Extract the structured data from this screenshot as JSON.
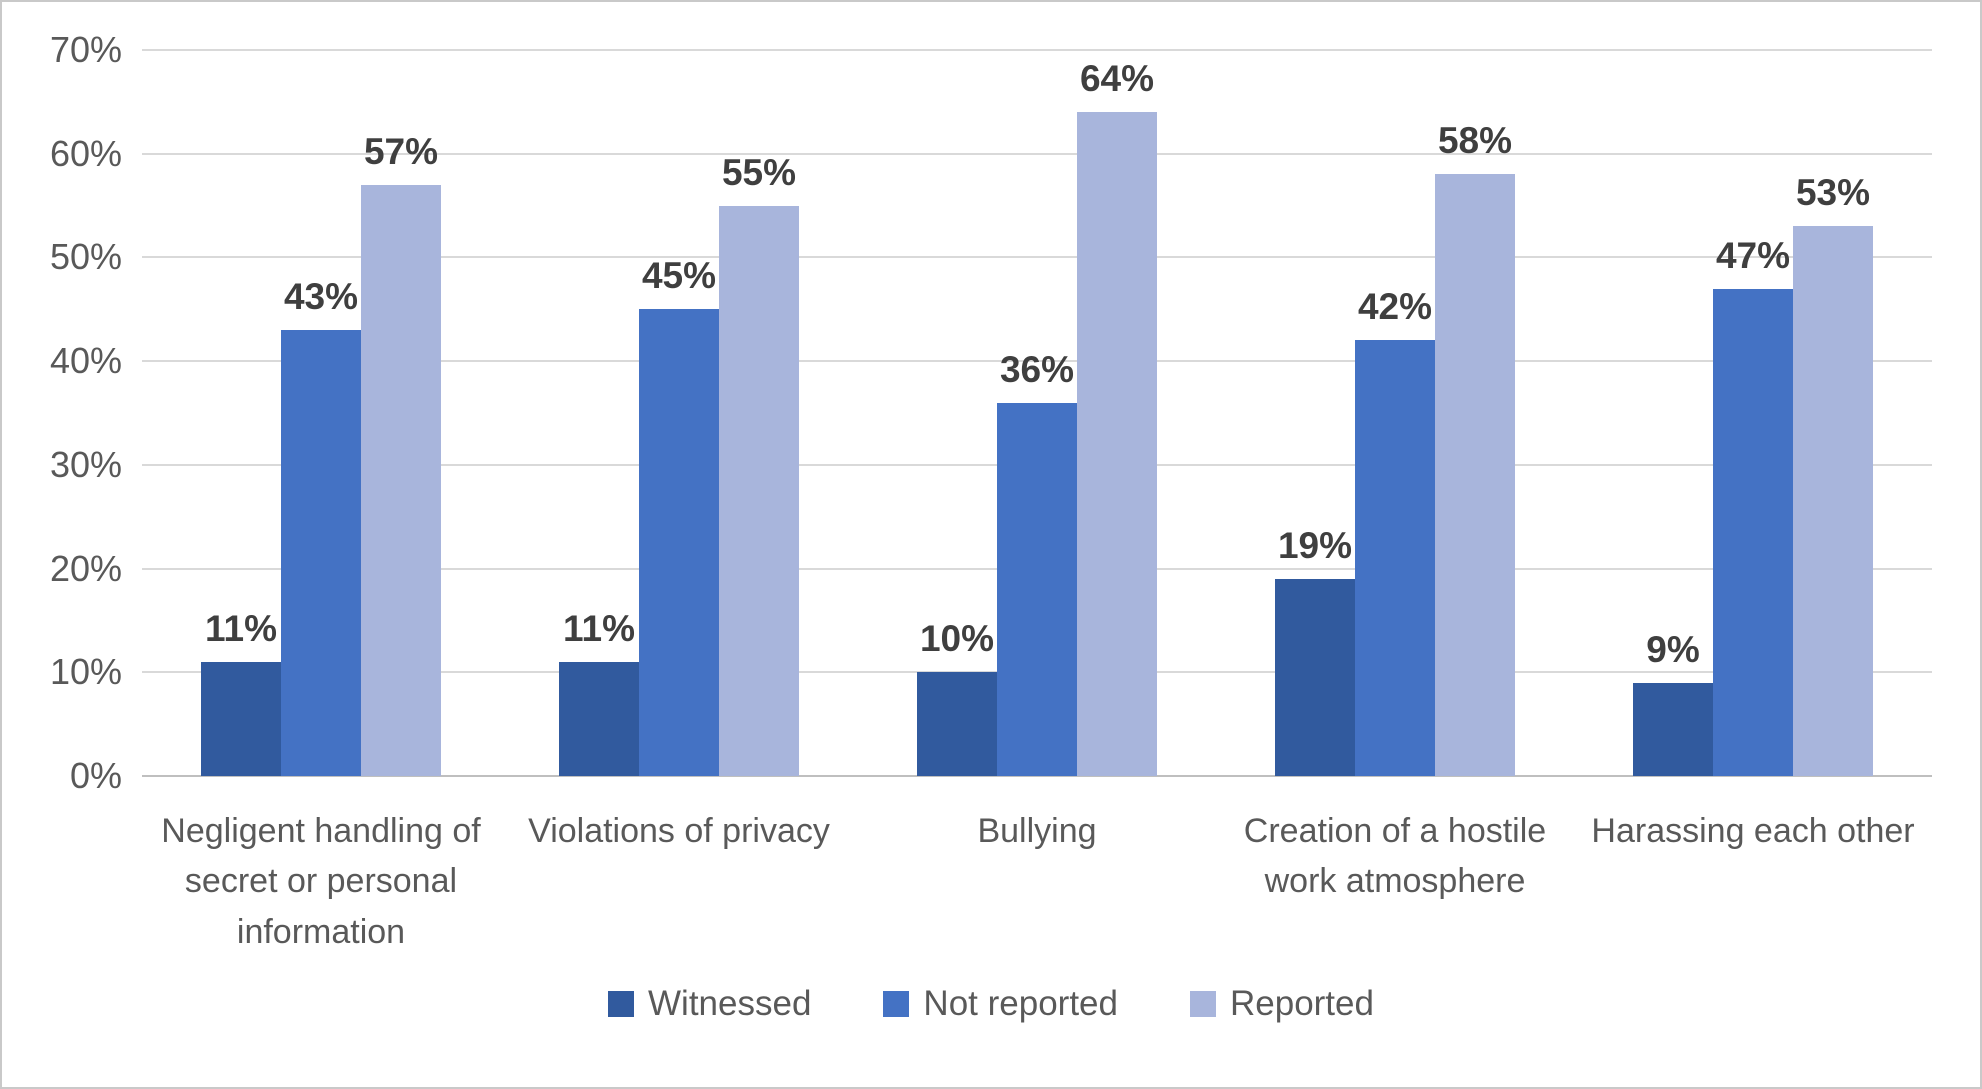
{
  "chart_data": {
    "type": "bar",
    "title": "",
    "categories": [
      "Negligent handling of secret or personal information",
      "Violations of privacy",
      "Bullying",
      "Creation of a hostile work atmosphere",
      "Harassing each other"
    ],
    "series": [
      {
        "name": "Witnessed",
        "color": "#315a9e",
        "values": [
          11,
          11,
          10,
          19,
          9
        ]
      },
      {
        "name": "Not reported",
        "color": "#4472c4",
        "values": [
          43,
          45,
          36,
          42,
          47
        ]
      },
      {
        "name": "Reported",
        "color": "#a8b5dc",
        "values": [
          57,
          55,
          64,
          58,
          53
        ]
      }
    ],
    "data_labels": [
      [
        "11%",
        "43%",
        "57%"
      ],
      [
        "11%",
        "45%",
        "55%"
      ],
      [
        "10%",
        "36%",
        "64%"
      ],
      [
        "19%",
        "42%",
        "58%"
      ],
      [
        "9%",
        "47%",
        "53%"
      ]
    ],
    "ylim": [
      0,
      70
    ],
    "ytick_step": 10,
    "ytick_labels": [
      "0%",
      "10%",
      "20%",
      "30%",
      "40%",
      "50%",
      "60%",
      "70%"
    ],
    "grid": true,
    "legend_position": "bottom"
  },
  "styles": {
    "gridline_color": "#d9d9d9",
    "axis_line_color": "#bfbfbf",
    "tick_text_color": "#595959",
    "category_text_color": "#595959",
    "data_label_color": "#3f3f3f",
    "legend_text_color": "#595959",
    "background": "#ffffff",
    "frame_border": "#c9c9c9"
  }
}
